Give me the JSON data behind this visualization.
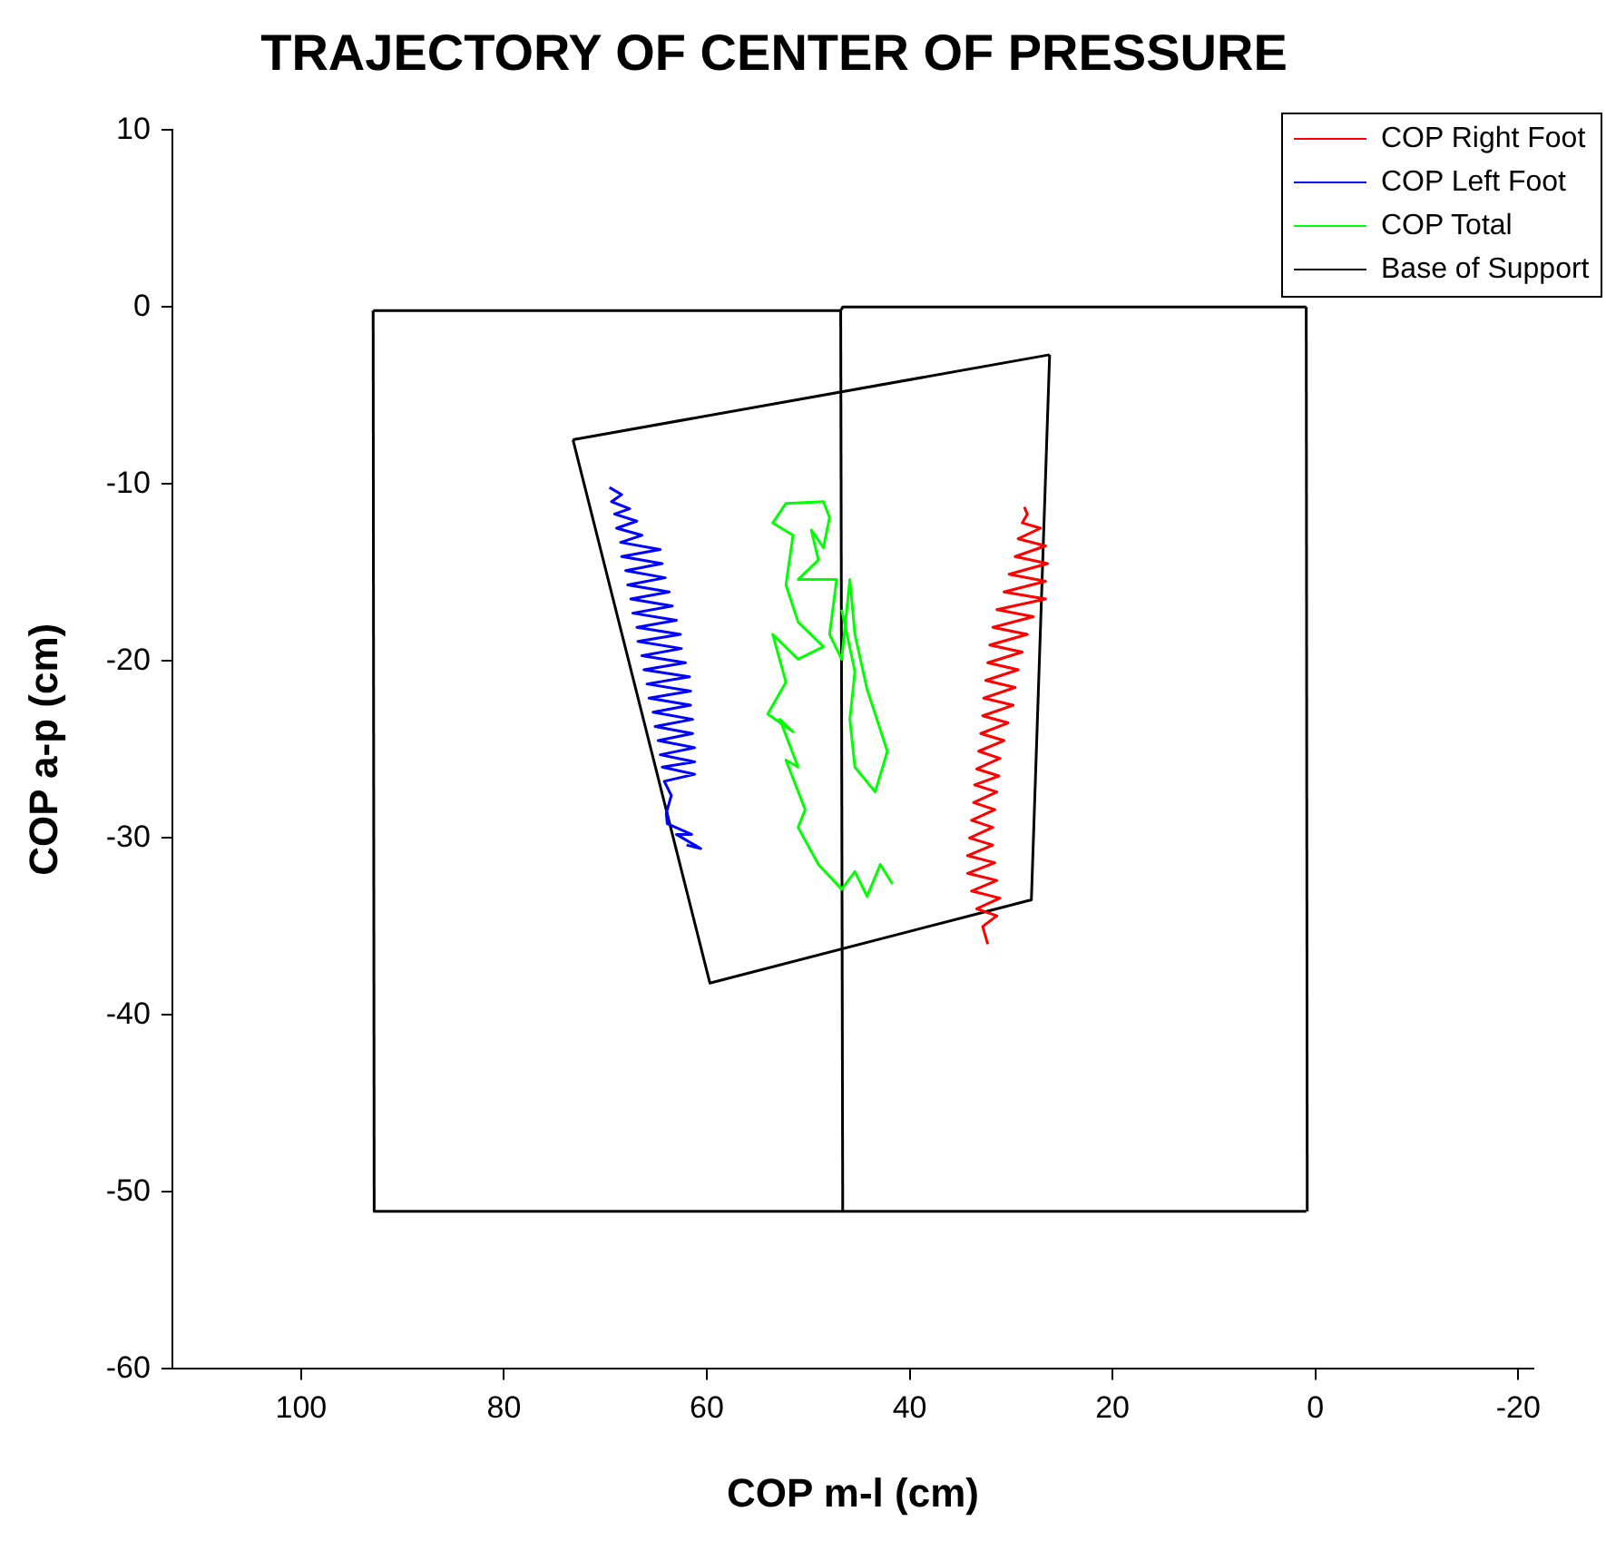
{
  "chart_data": {
    "type": "line",
    "title": "TRAJECTORY OF CENTER OF PRESSURE",
    "xlabel": "COP m-l (cm)",
    "ylabel": "COP a-p (cm)",
    "xlim": [
      112.7,
      -21.5
    ],
    "ylim": [
      -60,
      10
    ],
    "xticks": [
      100,
      80,
      60,
      40,
      20,
      0,
      -20
    ],
    "yticks": [
      10,
      0,
      -10,
      -20,
      -30,
      -40,
      -50,
      -60
    ],
    "legend": "top right",
    "series": [
      {
        "name": "COP Right Foot",
        "color": "#ff0000",
        "x": [
          28.7,
          28.4,
          28.9,
          27.1,
          29.3,
          26.6,
          29.6,
          26.4,
          30.2,
          26.6,
          30.7,
          26.6,
          31.4,
          27.8,
          31.8,
          28.4,
          32.1,
          28.9,
          32.3,
          29.3,
          32.5,
          29.6,
          32.7,
          29.8,
          32.8,
          30.3,
          33.0,
          30.7,
          33.2,
          31.1,
          33.4,
          31.2,
          33.6,
          31.4,
          33.7,
          31.6,
          33.9,
          31.8,
          34.1,
          31.8,
          34.3,
          31.6,
          34.3,
          31.4,
          33.9,
          31.1,
          33.4,
          31.4,
          32.8,
          32.3
        ],
        "values": [
          -11.3,
          -11.7,
          -12.2,
          -12.5,
          -13.1,
          -13.5,
          -14.1,
          -14.5,
          -15.1,
          -15.5,
          -16.1,
          -16.5,
          -17.1,
          -17.5,
          -18.1,
          -18.5,
          -19.1,
          -19.5,
          -20.1,
          -20.5,
          -21.1,
          -21.5,
          -22.1,
          -22.5,
          -23.1,
          -23.5,
          -24.1,
          -24.5,
          -25.1,
          -25.5,
          -26.1,
          -26.5,
          -27.0,
          -27.4,
          -28.0,
          -28.4,
          -29.0,
          -29.4,
          -30.0,
          -30.4,
          -31.0,
          -31.4,
          -32.0,
          -32.4,
          -33.0,
          -33.4,
          -34.0,
          -34.4,
          -35.0,
          -36.0
        ]
      },
      {
        "name": "COP Left Foot",
        "color": "#0000ff",
        "x": [
          69.6,
          68.4,
          69.4,
          67.6,
          69.1,
          66.9,
          68.9,
          66.4,
          68.5,
          64.6,
          68.4,
          64.4,
          68.0,
          64.1,
          67.8,
          63.7,
          67.5,
          63.4,
          67.3,
          63.0,
          66.9,
          62.6,
          66.8,
          62.5,
          66.4,
          62.1,
          66.2,
          61.7,
          65.9,
          61.6,
          65.7,
          61.6,
          65.3,
          61.4,
          65.1,
          61.4,
          64.8,
          61.2,
          64.6,
          61.2,
          64.4,
          61.2,
          64.2,
          63.5,
          64.0,
          63.9,
          61.5,
          63.0,
          60.6,
          62.0
        ],
        "values": [
          -10.2,
          -10.6,
          -11.0,
          -11.4,
          -11.7,
          -12.1,
          -12.5,
          -12.9,
          -13.3,
          -13.7,
          -14.1,
          -14.5,
          -14.9,
          -15.3,
          -15.7,
          -16.1,
          -16.5,
          -16.9,
          -17.3,
          -17.7,
          -18.1,
          -18.5,
          -18.9,
          -19.3,
          -19.7,
          -20.1,
          -20.5,
          -20.9,
          -21.3,
          -21.7,
          -22.1,
          -22.5,
          -22.9,
          -23.3,
          -23.7,
          -24.1,
          -24.5,
          -24.9,
          -25.3,
          -25.7,
          -26.0,
          -26.4,
          -26.8,
          -27.6,
          -28.6,
          -29.2,
          -29.8,
          -29.8,
          -30.6,
          -30.4
        ]
      },
      {
        "name": "COP Total",
        "color": "#00ff00",
        "x": [
          41.7,
          42.9,
          44.2,
          45.4,
          46.7,
          49.0,
          51.0,
          50.3,
          52.2,
          51.0,
          52.8,
          51.5,
          54.0,
          52.2,
          53.5,
          51.0,
          48.5,
          51.0,
          52.2,
          51.5,
          53.5,
          52.2,
          48.5,
          47.9,
          48.5,
          49.7,
          49.0,
          51.0,
          47.2,
          47.9,
          46.7,
          45.9,
          45.4,
          44.2,
          42.2,
          43.4,
          45.4,
          45.9,
          45.4,
          46.7
        ],
        "values": [
          -32.6,
          -31.5,
          -33.3,
          -31.9,
          -32.9,
          -31.5,
          -29.4,
          -28.4,
          -25.6,
          -26.0,
          -23.3,
          -24.0,
          -23.0,
          -21.2,
          -18.5,
          -19.9,
          -19.2,
          -17.8,
          -15.7,
          -12.9,
          -12.2,
          -11.1,
          -11.0,
          -11.9,
          -13.6,
          -12.6,
          -14.3,
          -15.4,
          -15.4,
          -18.5,
          -19.9,
          -15.4,
          -18.5,
          -21.6,
          -25.1,
          -27.4,
          -26.0,
          -23.3,
          -20.6,
          -17.1
        ]
      },
      {
        "name": "Base of Support",
        "color": "#000000",
        "x": [
          92.9,
          46.8,
          46.6,
          0.9
        ],
        "values": [
          -0.2,
          -0.2,
          0,
          0
        ]
      },
      {
        "color": "#000000",
        "x": [
          92.9,
          46.7,
          0.9
        ],
        "values": [
          -51.1,
          -51.1,
          -51.1
        ]
      },
      {
        "color": "#000000",
        "x": [
          92.9,
          92.8
        ],
        "values": [
          -0.2,
          -51.1
        ]
      },
      {
        "color": "#000000",
        "x": [
          46.8,
          46.6
        ],
        "values": [
          -0.2,
          -51.1
        ]
      },
      {
        "color": "#000000",
        "x": [
          0.9,
          0.8
        ],
        "values": [
          0,
          -51.1
        ]
      },
      {
        "color": "#000000",
        "x": [
          73.2,
          59.7,
          28.0,
          26.2
        ],
        "values": [
          -7.5,
          -38.2,
          -33.5,
          -2.7
        ]
      },
      {
        "color": "#000000",
        "x": [
          73.2,
          26.2
        ],
        "values": [
          -7.5,
          -2.7
        ]
      }
    ]
  }
}
